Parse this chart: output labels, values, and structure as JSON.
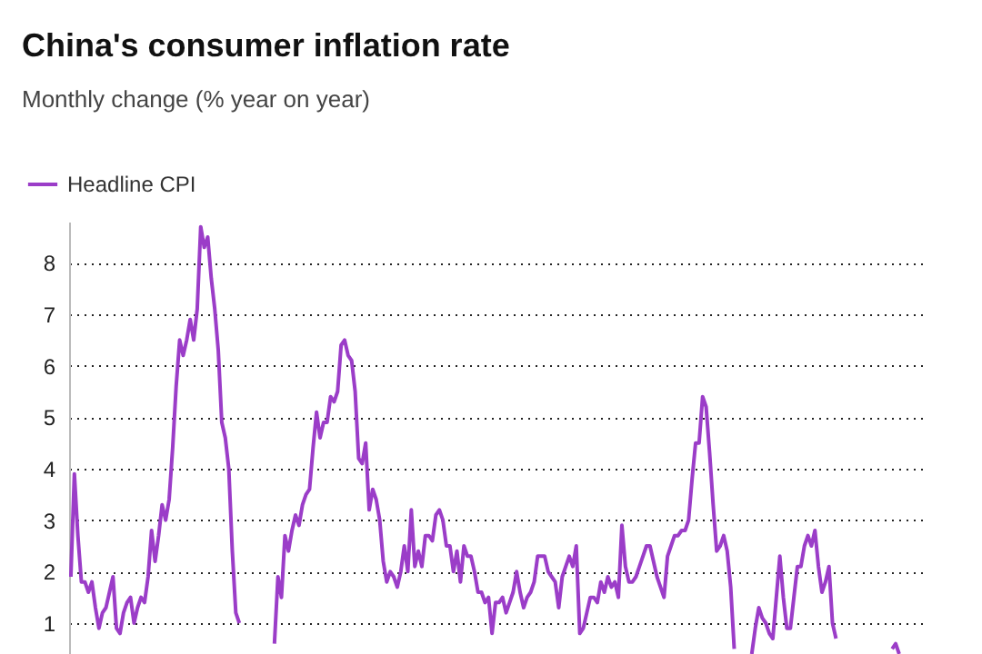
{
  "chart_data": {
    "type": "line",
    "title": "China's consumer inflation rate",
    "subtitle": "Monthly change (% year on year)",
    "categories": [
      null,
      null,
      null,
      null,
      null,
      null,
      null,
      null,
      null,
      null,
      null,
      null,
      null,
      null,
      null,
      null,
      null,
      null,
      null,
      null,
      null,
      null,
      null,
      null,
      null,
      null,
      null,
      null,
      null,
      null,
      null,
      null,
      null,
      null,
      null,
      null,
      null,
      null,
      null,
      null,
      null,
      null,
      null,
      null,
      null,
      null,
      null,
      null,
      null,
      null,
      null,
      null,
      null,
      null,
      null,
      null,
      null,
      null,
      null,
      null,
      null,
      null,
      null,
      null,
      null,
      null,
      null,
      null,
      null,
      null,
      null,
      null,
      null,
      null,
      null,
      null,
      null,
      null,
      null,
      null,
      null,
      null,
      null,
      null,
      null,
      null,
      null,
      null,
      null,
      null,
      null,
      null,
      null,
      null,
      null,
      null,
      null,
      null,
      null,
      null,
      null,
      null,
      null,
      null,
      null,
      null,
      null,
      null,
      null,
      null,
      null,
      null,
      null,
      null,
      null,
      null,
      null,
      null,
      null,
      null,
      null,
      null,
      null,
      null,
      null,
      null,
      null,
      null,
      null,
      null,
      null,
      null,
      null,
      null,
      null,
      null,
      null,
      null,
      null,
      null,
      null,
      null,
      null,
      null,
      null,
      null,
      null,
      null,
      null,
      null,
      null,
      null,
      null,
      null,
      null,
      null,
      null,
      null,
      null,
      null,
      null,
      null,
      null,
      null,
      null,
      null,
      null,
      null,
      null,
      null,
      null,
      null,
      null,
      null,
      null,
      null,
      null,
      null,
      null,
      null,
      null,
      null,
      null,
      null,
      null,
      null,
      null,
      null,
      null,
      null,
      null,
      null,
      null,
      null,
      null,
      null,
      null,
      null,
      null,
      null,
      null,
      null,
      null,
      null,
      null,
      null,
      null,
      null,
      null,
      null,
      null,
      null,
      null,
      null,
      null,
      null,
      null,
      null,
      null,
      null,
      null,
      null,
      null,
      null,
      null,
      null,
      null,
      null,
      null,
      null,
      null,
      null,
      null,
      null,
      null,
      null,
      null,
      null,
      null,
      null,
      null,
      null,
      null
    ],
    "series": [
      {
        "name": "Headline CPI",
        "color": "#9b3dc8",
        "values": [
          1.9,
          3.9,
          2.7,
          1.8,
          1.8,
          1.6,
          1.8,
          1.3,
          0.9,
          1.2,
          1.3,
          1.6,
          1.9,
          0.9,
          0.8,
          1.2,
          1.4,
          1.5,
          1.0,
          1.3,
          1.5,
          1.4,
          1.9,
          2.8,
          2.2,
          2.7,
          3.3,
          3.0,
          3.4,
          4.4,
          5.6,
          6.5,
          6.2,
          6.5,
          6.9,
          6.5,
          7.1,
          8.7,
          8.3,
          8.5,
          7.7,
          7.1,
          6.3,
          4.9,
          4.6,
          4.0,
          2.4,
          1.2,
          1.0,
          null,
          null,
          null,
          null,
          null,
          null,
          null,
          null,
          null,
          null,
          null,
          null,
          null,
          null,
          null,
          null,
          null,
          null,
          null,
          null,
          null,
          null,
          null,
          null,
          null,
          null,
          null,
          null,
          null,
          null,
          null,
          null,
          null,
          null,
          null,
          null,
          null,
          null,
          null,
          null,
          null,
          null,
          null,
          null,
          null,
          null,
          null,
          null,
          null,
          null,
          null,
          null,
          null,
          null,
          null,
          null,
          null,
          null,
          null,
          null,
          null,
          null,
          null,
          null,
          null,
          null,
          null,
          null,
          null,
          null,
          null,
          null,
          null,
          null,
          null,
          null,
          null,
          null,
          null,
          null,
          null,
          null,
          null,
          null,
          null,
          null,
          null,
          null,
          null,
          null,
          null,
          null,
          null,
          null,
          null,
          null,
          null,
          null,
          null,
          null,
          null,
          null,
          null,
          null,
          null,
          null,
          null,
          null,
          null,
          null,
          null,
          null,
          null,
          null,
          null,
          null,
          null,
          null,
          null,
          null,
          null,
          null,
          null,
          null,
          null,
          null,
          null,
          null,
          null,
          null,
          null,
          null,
          null,
          null,
          null,
          null,
          null,
          null,
          null,
          null,
          null,
          null,
          null,
          null,
          null,
          null,
          null,
          null,
          null,
          null,
          null,
          null,
          null,
          null,
          null,
          null,
          null,
          null,
          null,
          null,
          null,
          null,
          null,
          null,
          null,
          null,
          null,
          null,
          null,
          null,
          null,
          null,
          null,
          null,
          null,
          null,
          null,
          null,
          null,
          null,
          null,
          null,
          null,
          null,
          null,
          null,
          null,
          null,
          null,
          null,
          null,
          null,
          null,
          null
        ]
      },
      {
        "color": "#9b3dc8",
        "values": [
          null,
          null,
          null,
          null,
          null,
          null,
          null,
          null,
          null,
          null,
          null,
          null,
          null,
          null,
          null,
          null,
          null,
          null,
          null,
          null,
          null,
          null,
          null,
          null,
          null,
          null,
          null,
          null,
          null,
          null,
          null,
          null,
          null,
          null,
          null,
          null,
          null,
          null,
          null,
          null,
          null,
          null,
          null,
          null,
          null,
          null,
          null,
          null,
          null,
          null,
          null,
          null,
          null,
          null,
          null,
          null,
          null,
          null,
          0.6,
          1.9,
          1.5,
          2.7,
          2.4,
          2.8,
          3.1,
          2.9,
          3.3,
          3.5,
          3.6,
          4.4,
          5.1,
          4.6,
          4.9,
          4.9,
          5.4,
          5.3,
          5.5,
          6.4,
          6.5,
          6.2,
          6.1,
          5.5,
          4.2,
          4.1,
          4.5,
          3.2,
          3.6,
          3.4,
          3.0,
          2.2,
          1.8,
          2.0,
          1.9,
          1.7,
          2.0,
          2.5,
          2.0,
          3.2,
          2.1,
          2.4,
          2.1,
          2.7,
          2.7,
          2.6,
          3.1,
          3.2,
          3.0,
          2.5,
          2.5,
          2.0,
          2.4,
          1.8,
          2.5,
          2.3,
          2.3,
          2.0,
          1.6,
          1.6,
          1.4,
          1.5,
          0.8,
          1.4,
          1.4,
          1.5,
          1.2,
          1.4,
          1.6,
          2.0,
          1.6,
          1.3,
          1.5,
          1.6,
          1.8,
          2.3,
          2.3,
          2.3,
          2.0,
          1.9,
          1.8,
          1.3,
          1.9,
          2.1,
          2.3,
          2.1,
          2.5,
          0.8,
          0.9,
          1.2,
          1.5,
          1.5,
          1.4,
          1.8,
          1.6,
          1.9,
          1.7,
          1.8,
          1.5,
          2.9,
          2.1,
          1.8,
          1.8,
          1.9,
          2.1,
          2.3,
          2.5,
          2.5,
          2.2,
          1.9,
          1.7,
          1.5,
          2.3,
          2.5,
          2.7,
          2.7,
          2.8,
          2.8,
          3.0,
          3.8,
          4.5,
          4.5,
          5.4,
          5.2,
          4.3,
          3.3,
          2.4,
          2.5,
          2.7,
          2.4,
          1.7,
          0.5,
          null,
          null,
          null,
          null,
          null,
          null,
          null,
          null,
          null,
          null,
          null,
          null,
          null,
          null,
          null,
          null,
          null,
          null,
          null,
          null,
          null,
          null,
          null,
          null,
          null,
          null,
          null,
          null,
          null,
          null,
          null,
          null,
          null,
          null,
          null,
          null,
          null,
          null,
          null,
          null,
          null,
          null,
          null,
          null,
          null,
          null,
          null,
          null,
          null,
          null,
          null,
          null,
          null
        ]
      },
      {
        "color": "#9b3dc8",
        "values": [
          null,
          null,
          null,
          null,
          null,
          null,
          null,
          null,
          null,
          null,
          null,
          null,
          null,
          null,
          null,
          null,
          null,
          null,
          null,
          null,
          null,
          null,
          null,
          null,
          null,
          null,
          null,
          null,
          null,
          null,
          null,
          null,
          null,
          null,
          null,
          null,
          null,
          null,
          null,
          null,
          null,
          null,
          null,
          null,
          null,
          null,
          null,
          null,
          null,
          null,
          null,
          null,
          null,
          null,
          null,
          null,
          null,
          null,
          null,
          null,
          null,
          null,
          null,
          null,
          null,
          null,
          null,
          null,
          null,
          null,
          null,
          null,
          null,
          null,
          null,
          null,
          null,
          null,
          null,
          null,
          null,
          null,
          null,
          null,
          null,
          null,
          null,
          null,
          null,
          null,
          null,
          null,
          null,
          null,
          null,
          null,
          null,
          null,
          null,
          null,
          null,
          null,
          null,
          null,
          null,
          null,
          null,
          null,
          null,
          null,
          null,
          null,
          null,
          null,
          null,
          null,
          null,
          null,
          null,
          null,
          null,
          null,
          null,
          null,
          null,
          null,
          null,
          null,
          null,
          null,
          null,
          null,
          null,
          null,
          null,
          null,
          null,
          null,
          null,
          null,
          null,
          null,
          null,
          null,
          null,
          null,
          null,
          null,
          null,
          null,
          null,
          null,
          null,
          null,
          null,
          null,
          null,
          null,
          null,
          null,
          null,
          null,
          null,
          null,
          null,
          null,
          null,
          null,
          null,
          null,
          null,
          null,
          null,
          null,
          null,
          null,
          null,
          null,
          null,
          null,
          null,
          null,
          null,
          null,
          null,
          null,
          null,
          null,
          null,
          null,
          null,
          null,
          null,
          null,
          0.4,
          0.9,
          1.3,
          1.1,
          1.0,
          0.8,
          0.7,
          1.5,
          2.3,
          1.5,
          0.9,
          0.9,
          1.5,
          2.1,
          2.1,
          2.5,
          2.7,
          2.5,
          2.8,
          2.1,
          1.6,
          1.8,
          2.1,
          1.0,
          0.7,
          null,
          null,
          null,
          null,
          null,
          null,
          null,
          null,
          null,
          null,
          null,
          null,
          null,
          null,
          null,
          null,
          null,
          null,
          null,
          null,
          null,
          null,
          null,
          null
        ]
      },
      {
        "color": "#9b3dc8",
        "values": [
          null,
          null,
          null,
          null,
          null,
          null,
          null,
          null,
          null,
          null,
          null,
          null,
          null,
          null,
          null,
          null,
          null,
          null,
          null,
          null,
          null,
          null,
          null,
          null,
          null,
          null,
          null,
          null,
          null,
          null,
          null,
          null,
          null,
          null,
          null,
          null,
          null,
          null,
          null,
          null,
          null,
          null,
          null,
          null,
          null,
          null,
          null,
          null,
          null,
          null,
          null,
          null,
          null,
          null,
          null,
          null,
          null,
          null,
          null,
          null,
          null,
          null,
          null,
          null,
          null,
          null,
          null,
          null,
          null,
          null,
          null,
          null,
          null,
          null,
          null,
          null,
          null,
          null,
          null,
          null,
          null,
          null,
          null,
          null,
          null,
          null,
          null,
          null,
          null,
          null,
          null,
          null,
          null,
          null,
          null,
          null,
          null,
          null,
          null,
          null,
          null,
          null,
          null,
          null,
          null,
          null,
          null,
          null,
          null,
          null,
          null,
          null,
          null,
          null,
          null,
          null,
          null,
          null,
          null,
          null,
          null,
          null,
          null,
          null,
          null,
          null,
          null,
          null,
          null,
          null,
          null,
          null,
          null,
          null,
          null,
          null,
          null,
          null,
          null,
          null,
          null,
          null,
          null,
          null,
          null,
          null,
          null,
          null,
          null,
          null,
          null,
          null,
          null,
          null,
          null,
          null,
          null,
          null,
          null,
          null,
          null,
          null,
          null,
          null,
          null,
          null,
          null,
          null,
          null,
          null,
          null,
          null,
          null,
          null,
          null,
          null,
          null,
          null,
          null,
          null,
          null,
          null,
          null,
          null,
          null,
          null,
          null,
          null,
          null,
          null,
          null,
          null,
          null,
          null,
          null,
          null,
          null,
          null,
          null,
          null,
          null,
          null,
          null,
          null,
          null,
          null,
          null,
          null,
          null,
          null,
          null,
          null,
          null,
          null,
          null,
          null,
          null,
          null,
          null,
          null,
          null,
          null,
          null,
          null,
          null,
          null,
          null,
          null,
          null,
          null,
          null,
          null,
          null,
          null,
          0.5,
          0.6,
          0.4,
          null,
          null,
          null,
          null,
          null,
          null
        ]
      }
    ],
    "ylim": [
      0.4,
      8.8
    ],
    "yticks": [
      1,
      2,
      3,
      4,
      5,
      6,
      7,
      8
    ],
    "grid": "y",
    "legend": "top left",
    "tick_labels": "y"
  }
}
